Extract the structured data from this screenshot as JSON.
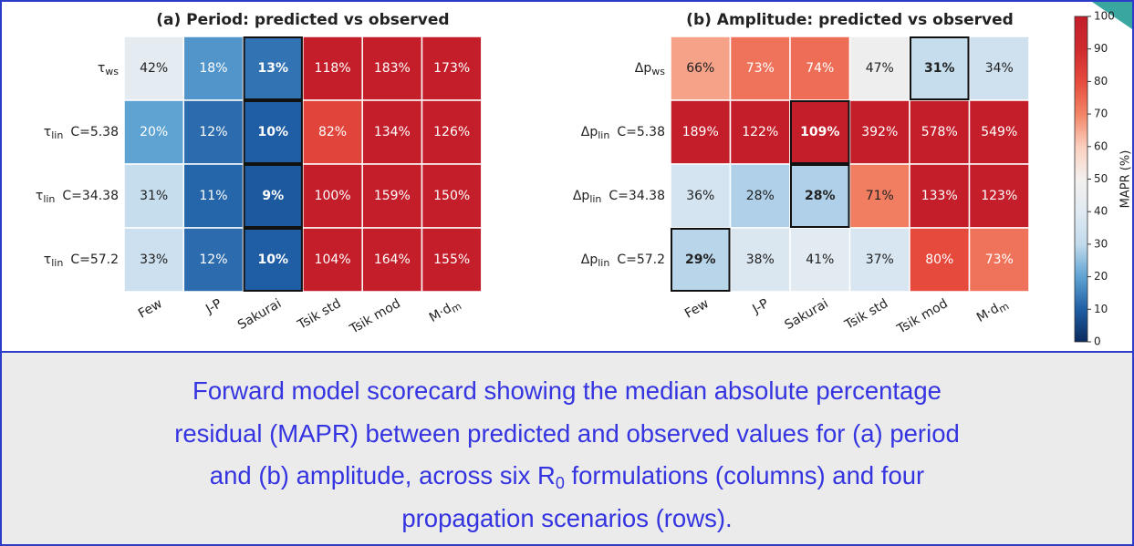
{
  "chart_data": [
    {
      "type": "heatmap",
      "title": "(a)  Period: predicted vs observed",
      "rows": [
        {
          "base": "τ",
          "sub": "ws"
        },
        {
          "base": "τ",
          "sub": "lin",
          "extra": "C=5.38"
        },
        {
          "base": "τ",
          "sub": "lin",
          "extra": "C=34.38"
        },
        {
          "base": "τ",
          "sub": "lin",
          "extra": "C=57.2"
        }
      ],
      "columns": [
        {
          "base": "Few"
        },
        {
          "base": "J-P"
        },
        {
          "base": "Sakurai"
        },
        {
          "base": "Tsik std"
        },
        {
          "base": "Tsik mod"
        },
        {
          "base": "M·d",
          "sub": "m"
        }
      ],
      "values": [
        [
          42,
          18,
          13,
          118,
          183,
          173
        ],
        [
          20,
          12,
          10,
          82,
          134,
          126
        ],
        [
          31,
          11,
          9,
          100,
          159,
          150
        ],
        [
          33,
          12,
          10,
          104,
          164,
          155
        ]
      ],
      "value_labels": [
        [
          "42%",
          "18%",
          "13%",
          "118%",
          "183%",
          "173%"
        ],
        [
          "20%",
          "12%",
          "10%",
          "82%",
          "134%",
          "126%"
        ],
        [
          "31%",
          "11%",
          "9%",
          "100%",
          "159%",
          "150%"
        ],
        [
          "33%",
          "12%",
          "10%",
          "104%",
          "164%",
          "155%"
        ]
      ],
      "highlighted": [
        [
          0,
          2
        ],
        [
          1,
          2
        ],
        [
          2,
          2
        ],
        [
          3,
          2
        ]
      ]
    },
    {
      "type": "heatmap",
      "title": "(b)  Amplitude: predicted vs observed",
      "rows": [
        {
          "base": "Δp",
          "sub": "ws"
        },
        {
          "base": "Δp",
          "sub": "lin",
          "extra": "C=5.38"
        },
        {
          "base": "Δp",
          "sub": "lin",
          "extra": "C=34.38"
        },
        {
          "base": "Δp",
          "sub": "lin",
          "extra": "C=57.2"
        }
      ],
      "columns": [
        {
          "base": "Few"
        },
        {
          "base": "J-P"
        },
        {
          "base": "Sakurai"
        },
        {
          "base": "Tsik std"
        },
        {
          "base": "Tsik mod"
        },
        {
          "base": "M·d",
          "sub": "m"
        }
      ],
      "values": [
        [
          66,
          73,
          74,
          47,
          31,
          34
        ],
        [
          189,
          122,
          109,
          392,
          578,
          549
        ],
        [
          36,
          28,
          28,
          71,
          133,
          123
        ],
        [
          29,
          38,
          41,
          37,
          80,
          73
        ]
      ],
      "value_labels": [
        [
          "66%",
          "73%",
          "74%",
          "47%",
          "31%",
          "34%"
        ],
        [
          "189%",
          "122%",
          "109%",
          "392%",
          "578%",
          "549%"
        ],
        [
          "36%",
          "28%",
          "28%",
          "71%",
          "133%",
          "123%"
        ],
        [
          "29%",
          "38%",
          "41%",
          "37%",
          "80%",
          "73%"
        ]
      ],
      "highlighted": [
        [
          0,
          4
        ],
        [
          1,
          2
        ],
        [
          2,
          2
        ],
        [
          3,
          0
        ]
      ],
      "colorbar": {
        "label": "MAPR (%)",
        "lim": [
          0,
          100
        ],
        "ticks": [
          0,
          10,
          20,
          30,
          40,
          50,
          60,
          70,
          80,
          90,
          100
        ],
        "colors": [
          "#0b2a5e",
          "#1f5ea5",
          "#5fa3d3",
          "#c3dbed",
          "#e0eaf2",
          "#f4f0ee",
          "#fbcfbe",
          "#f38466",
          "#e64a3d",
          "#cf2a2e",
          "#c41e2a"
        ]
      }
    }
  ],
  "caption": [
    "Forward model scorecard showing the median absolute percentage",
    "residual (MAPR) between predicted and observed values for (a) period",
    {
      "before": "and (b) amplitude, across six R",
      "sub": "0",
      "after": " formulations (columns) and four"
    },
    "propagation scenarios (rows)."
  ]
}
